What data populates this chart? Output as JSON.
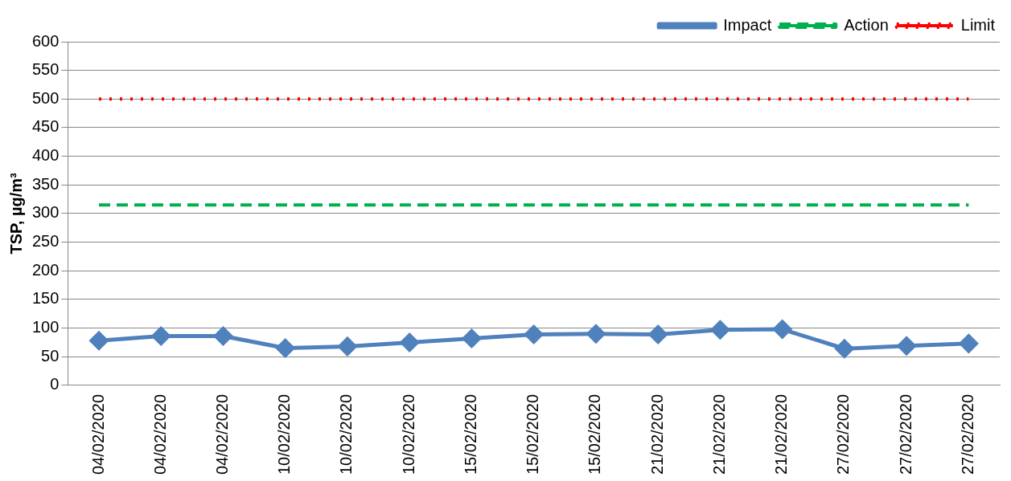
{
  "chart_data": {
    "type": "line",
    "ylabel": "TSP, µg/m³",
    "categories": [
      "04/02/2020",
      "04/02/2020",
      "04/02/2020",
      "10/02/2020",
      "10/02/2020",
      "10/02/2020",
      "15/02/2020",
      "15/02/2020",
      "15/02/2020",
      "21/02/2020",
      "21/02/2020",
      "21/02/2020",
      "27/02/2020",
      "27/02/2020",
      "27/02/2020"
    ],
    "series": [
      {
        "name": "Impact",
        "color": "#4f81bd",
        "marker": "diamond",
        "line_style": "solid",
        "values": [
          78,
          86,
          86,
          65,
          68,
          75,
          82,
          89,
          90,
          89,
          97,
          98,
          64,
          69,
          73
        ]
      },
      {
        "name": "Action",
        "color": "#00b050",
        "marker": "none",
        "line_style": "dashed",
        "values": [
          315,
          315,
          315,
          315,
          315,
          315,
          315,
          315,
          315,
          315,
          315,
          315,
          315,
          315,
          315
        ]
      },
      {
        "name": "Limit",
        "color": "#ff0000",
        "marker": "none",
        "line_style": "dotted",
        "values": [
          500,
          500,
          500,
          500,
          500,
          500,
          500,
          500,
          500,
          500,
          500,
          500,
          500,
          500,
          500
        ]
      }
    ],
    "ylim": [
      0,
      600
    ],
    "yticks": [
      0,
      50,
      100,
      150,
      200,
      250,
      300,
      350,
      400,
      450,
      500,
      550,
      600
    ],
    "grid": "y",
    "legend": "top right"
  }
}
